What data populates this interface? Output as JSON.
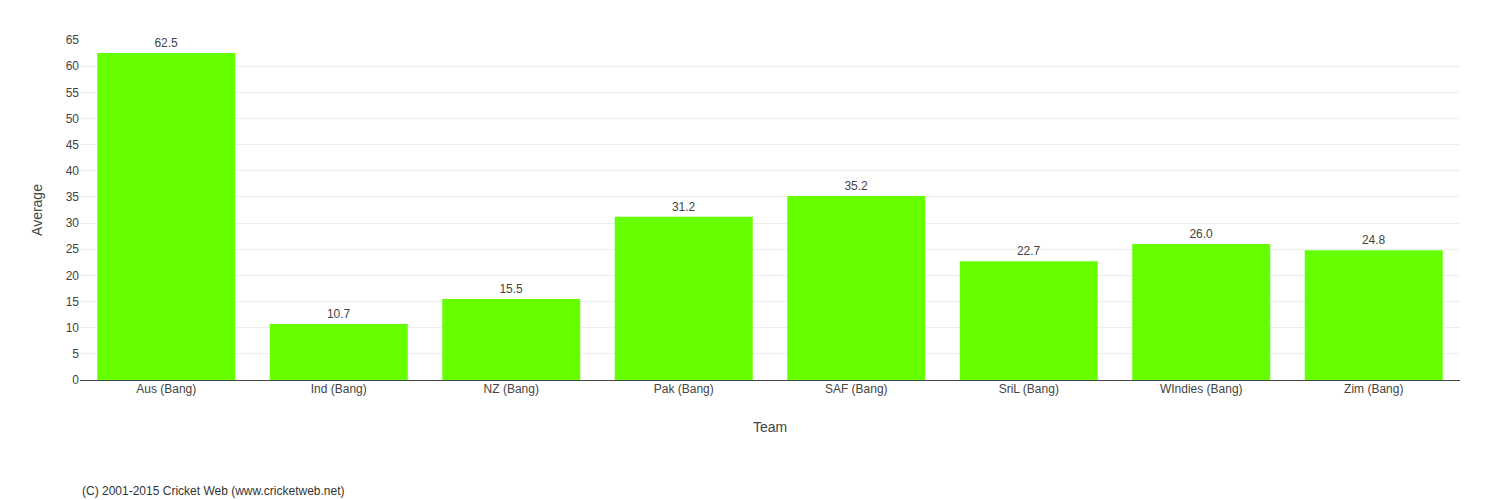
{
  "chart_data": {
    "type": "bar",
    "categories": [
      "Aus (Bang)",
      "Ind (Bang)",
      "NZ (Bang)",
      "Pak (Bang)",
      "SAF (Bang)",
      "SriL (Bang)",
      "WIndies (Bang)",
      "Zim (Bang)"
    ],
    "values": [
      62.5,
      10.7,
      15.5,
      31.2,
      35.2,
      22.7,
      26.0,
      24.8
    ],
    "value_labels": [
      "62.5",
      "10.7",
      "15.5",
      "31.2",
      "35.2",
      "22.7",
      "26.0",
      "24.8"
    ],
    "data_labels": true,
    "color": "#66ff00",
    "xlabel": "Team",
    "ylabel": "Average",
    "ylim": [
      0,
      65
    ],
    "yticks": [
      0,
      5,
      10,
      15,
      20,
      25,
      30,
      35,
      40,
      45,
      50,
      55,
      60,
      65
    ],
    "grid": true,
    "annotations": [
      "(C) 2001-2015 Cricket Web (www.cricketweb.net)"
    ]
  }
}
